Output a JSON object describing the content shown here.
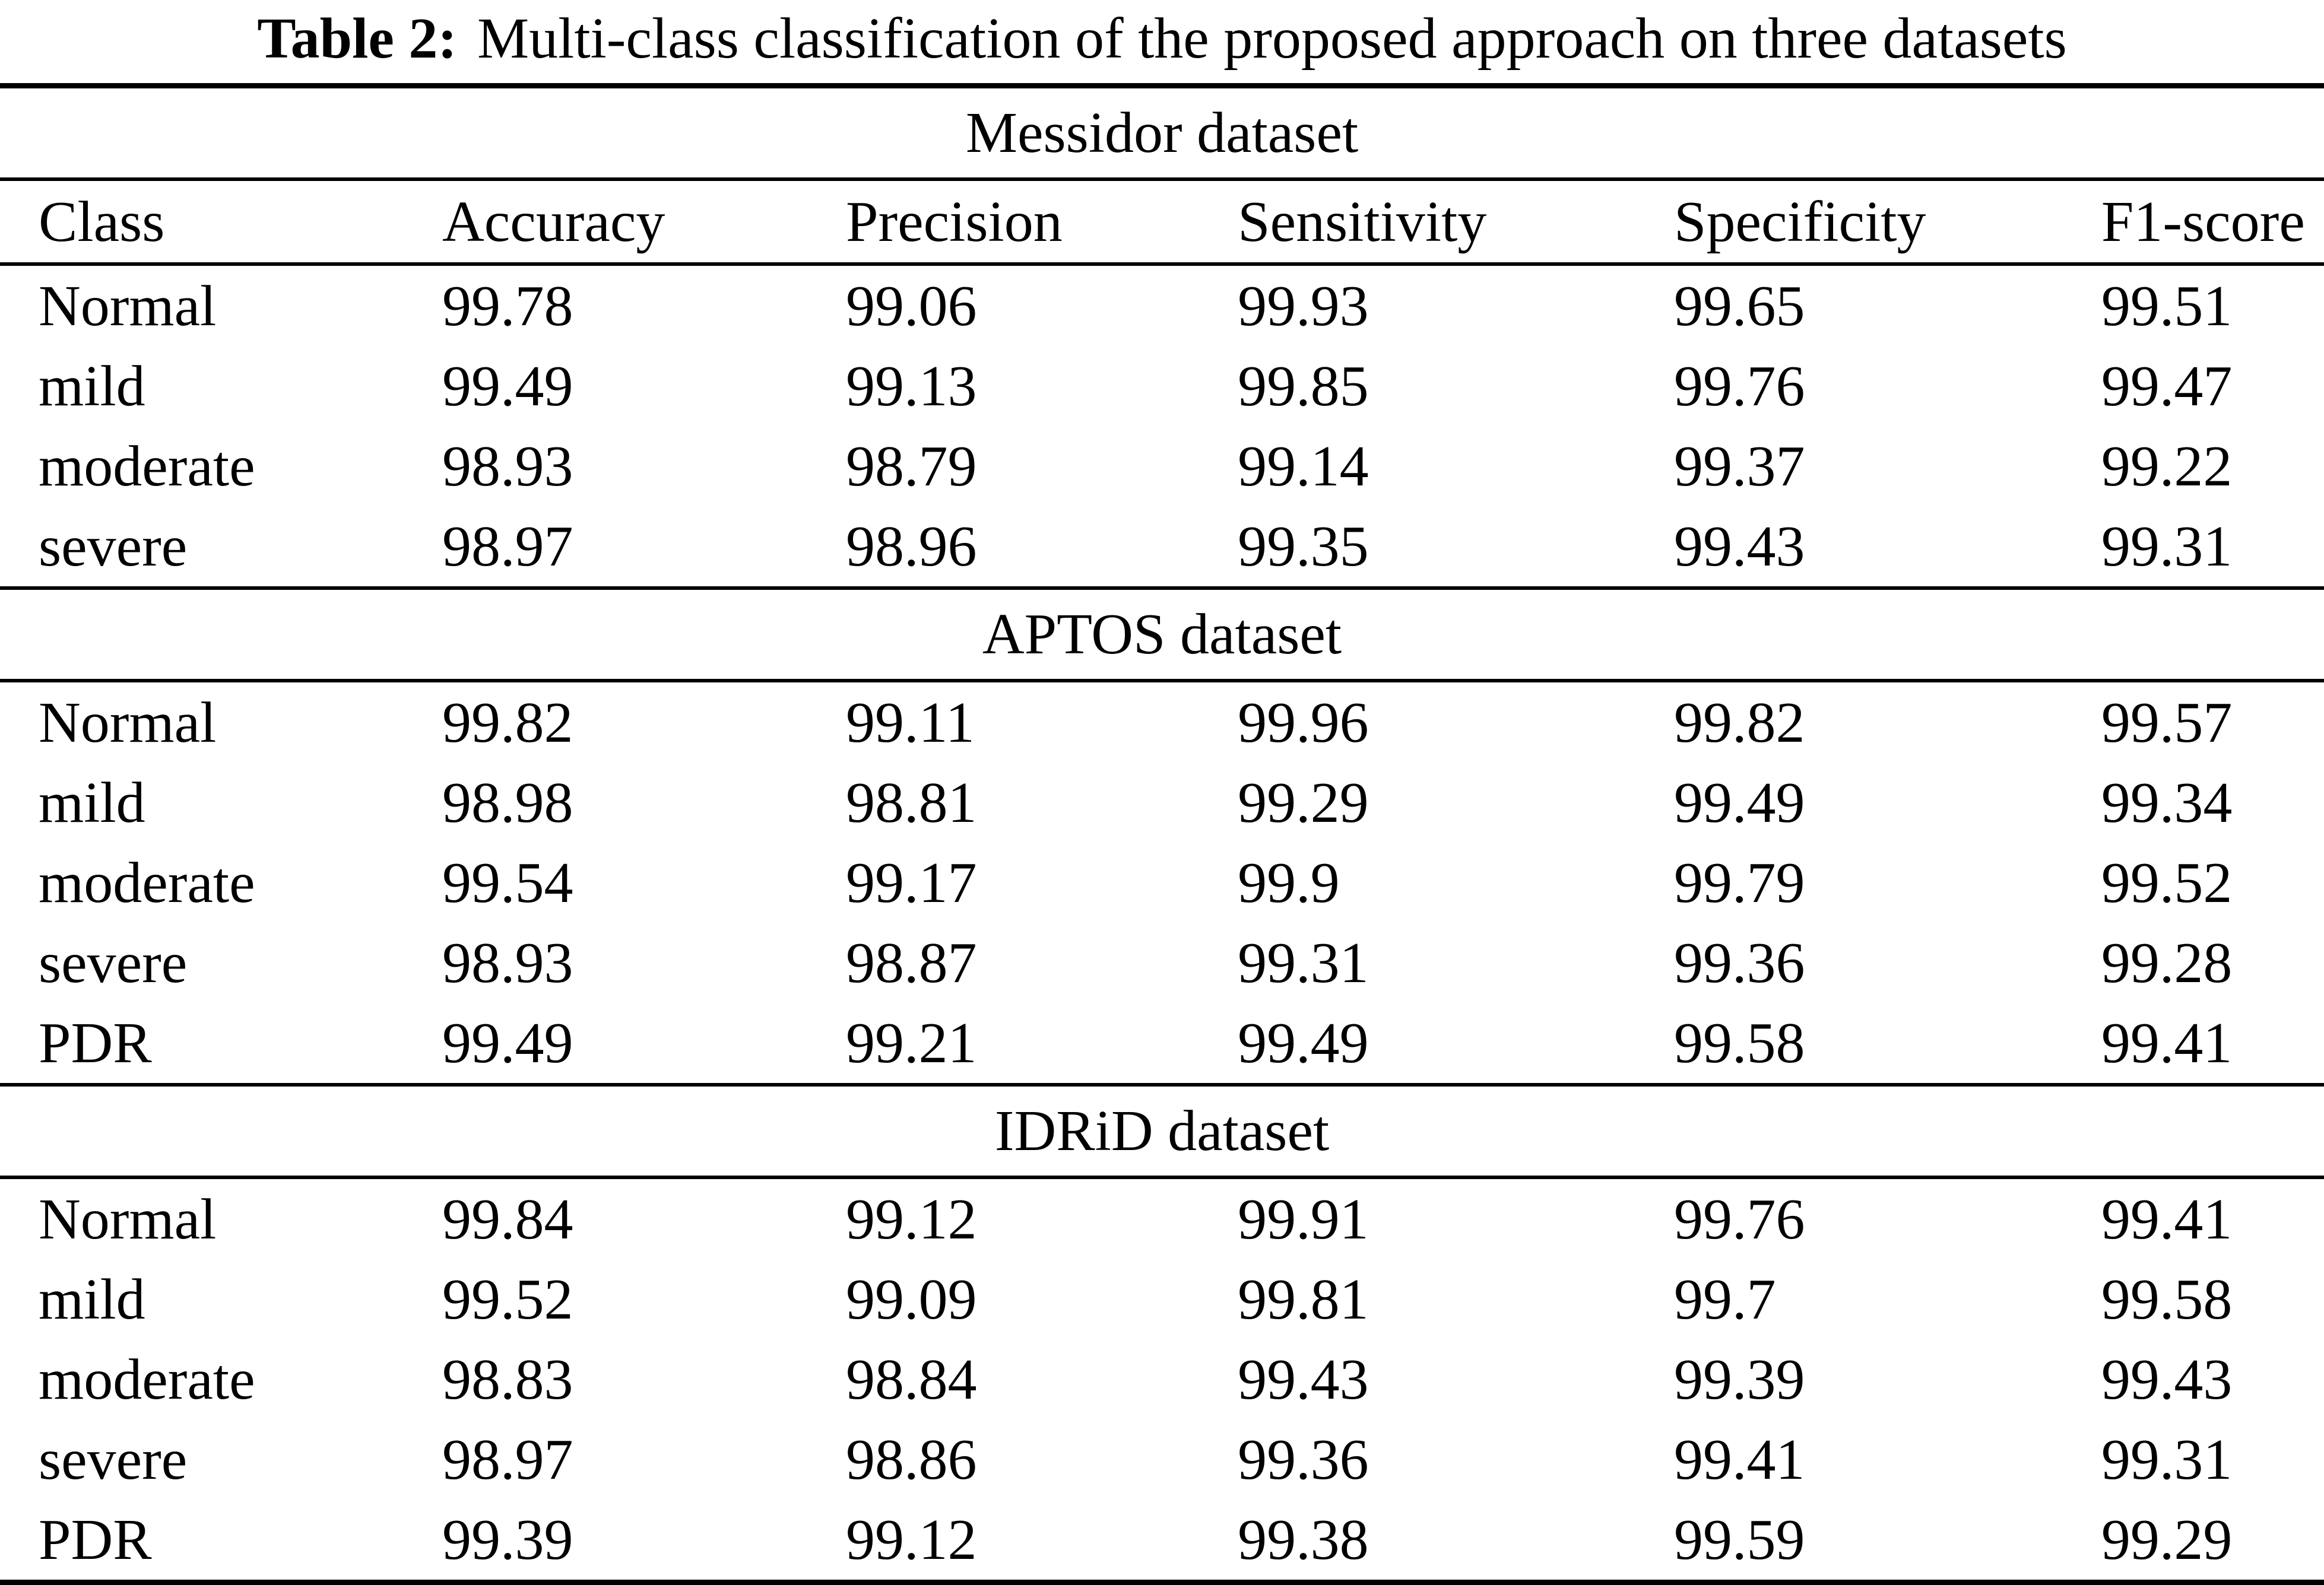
{
  "title": {
    "label": "Table 2:",
    "text": "Multi-class classification of the proposed approach on three datasets"
  },
  "columns": [
    "Class",
    "Accuracy",
    "Precision",
    "Sensitivity",
    "Specificity",
    "F1-score"
  ],
  "sections": [
    {
      "name": "Messidor dataset",
      "rows": [
        [
          "Normal",
          "99.78",
          "99.06",
          "99.93",
          "99.65",
          "99.51"
        ],
        [
          "mild",
          "99.49",
          "99.13",
          "99.85",
          "99.76",
          "99.47"
        ],
        [
          "moderate",
          "98.93",
          "98.79",
          "99.14",
          "99.37",
          "99.22"
        ],
        [
          "severe",
          "98.97",
          "98.96",
          "99.35",
          "99.43",
          "99.31"
        ]
      ]
    },
    {
      "name": "APTOS dataset",
      "rows": [
        [
          "Normal",
          "99.82",
          "99.11",
          "99.96",
          "99.82",
          "99.57"
        ],
        [
          "mild",
          "98.98",
          "98.81",
          "99.29",
          "99.49",
          "99.34"
        ],
        [
          "moderate",
          "99.54",
          "99.17",
          "99.9",
          "99.79",
          "99.52"
        ],
        [
          "severe",
          "98.93",
          "98.87",
          "99.31",
          "99.36",
          "99.28"
        ],
        [
          "PDR",
          "99.49",
          "99.21",
          "99.49",
          "99.58",
          "99.41"
        ]
      ]
    },
    {
      "name": "IDRiD dataset",
      "rows": [
        [
          "Normal",
          "99.84",
          "99.12",
          "99.91",
          "99.76",
          "99.41"
        ],
        [
          "mild",
          "99.52",
          "99.09",
          "99.81",
          "99.7",
          "99.58"
        ],
        [
          "moderate",
          "98.83",
          "98.84",
          "99.43",
          "99.39",
          "99.43"
        ],
        [
          "severe",
          "98.97",
          "98.86",
          "99.36",
          "99.41",
          "99.31"
        ],
        [
          "PDR",
          "99.39",
          "99.12",
          "99.38",
          "99.59",
          "99.29"
        ]
      ]
    }
  ]
}
